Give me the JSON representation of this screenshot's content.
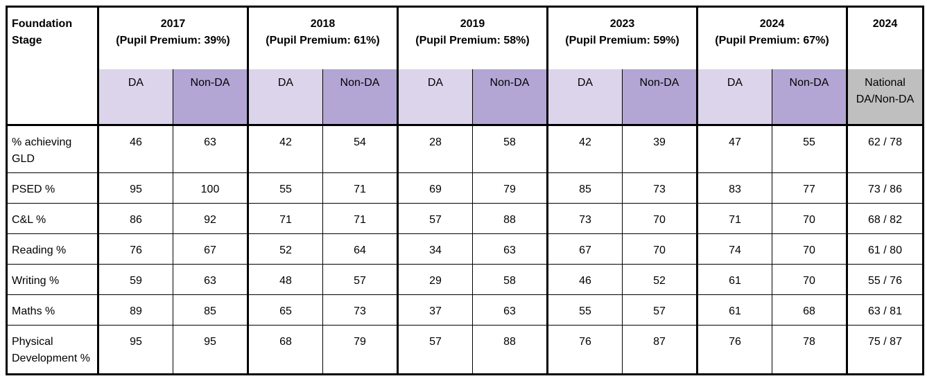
{
  "header": {
    "foundation_stage": "Foundation Stage",
    "years": [
      {
        "year": "2017",
        "premium": "(Pupil Premium: 39%)"
      },
      {
        "year": "2018",
        "premium": "(Pupil Premium: 61%)"
      },
      {
        "year": "2019",
        "premium": "(Pupil Premium: 58%)"
      },
      {
        "year": "2023",
        "premium": "(Pupil Premium: 59%)"
      },
      {
        "year": "2024",
        "premium": "(Pupil Premium: 67%)"
      }
    ],
    "national_year": "2024"
  },
  "subheader": {
    "da": "DA",
    "non_da": "Non-DA",
    "national": "National DA/Non-DA"
  },
  "rows": [
    {
      "label": "% achieving GLD",
      "values": [
        "46",
        "63",
        "42",
        "54",
        "28",
        "58",
        "42",
        "39",
        "47",
        "55"
      ],
      "national": "62 / 78"
    },
    {
      "label": "PSED %",
      "values": [
        "95",
        "100",
        "55",
        "71",
        "69",
        "79",
        "85",
        "73",
        "83",
        "77"
      ],
      "national": "73 / 86"
    },
    {
      "label": "C&L %",
      "values": [
        "86",
        "92",
        "71",
        "71",
        "57",
        "88",
        "73",
        "70",
        "71",
        "70"
      ],
      "national": "68 / 82"
    },
    {
      "label": "Reading %",
      "values": [
        "76",
        "67",
        "52",
        "64",
        "34",
        "63",
        "67",
        "70",
        "74",
        "70"
      ],
      "national": "61 / 80"
    },
    {
      "label": "Writing %",
      "values": [
        "59",
        "63",
        "48",
        "57",
        "29",
        "58",
        "46",
        "52",
        "61",
        "70"
      ],
      "national": "55 / 76"
    },
    {
      "label": "Maths %",
      "values": [
        "89",
        "85",
        "65",
        "73",
        "37",
        "63",
        "55",
        "57",
        "61",
        "68"
      ],
      "national": "63 / 81"
    },
    {
      "label": "Physical Development %",
      "values": [
        "95",
        "95",
        "68",
        "79",
        "57",
        "88",
        "76",
        "87",
        "76",
        "78"
      ],
      "national": "75 / 87"
    }
  ]
}
